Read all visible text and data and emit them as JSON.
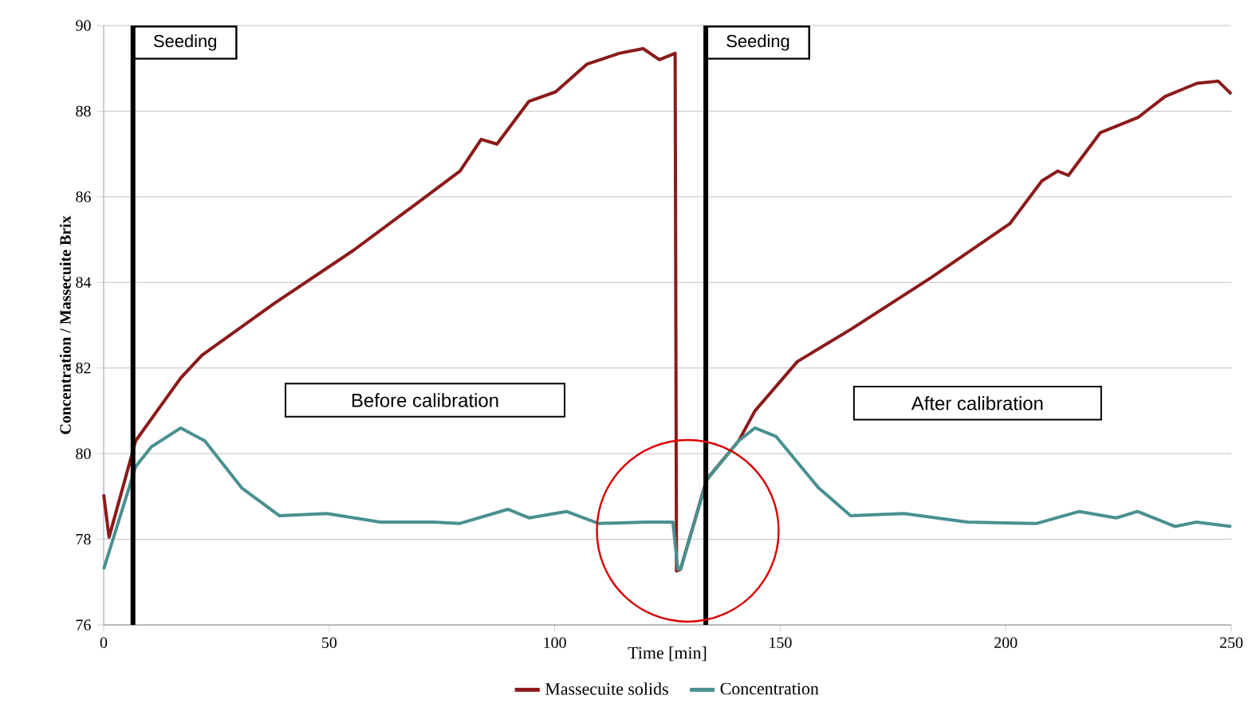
{
  "chart_data": {
    "type": "line",
    "xlabel": "Time [min]",
    "ylabel": "Concentration / Massecuite Brix",
    "xlim": [
      0,
      250
    ],
    "ylim": [
      76,
      90
    ],
    "xticks": [
      0,
      50,
      100,
      150,
      200,
      250
    ],
    "yticks": [
      76,
      78,
      80,
      82,
      84,
      86,
      88,
      90
    ],
    "grid": "y",
    "legend": "bottom",
    "marker": "none",
    "line_style": "solid",
    "series": [
      {
        "name": "Massecuite solids",
        "color": "#8b1a1a",
        "x": [
          0,
          1.2,
          7.1,
          17.1,
          21.8,
          37.7,
          55.4,
          69.5,
          79,
          83.7,
          87.2,
          94.3,
          100.2,
          107.2,
          114.3,
          119.6,
          123.2,
          126.7,
          127,
          127.9,
          133.7,
          140.8,
          144.4,
          153.8,
          165.6,
          183.3,
          200.9,
          208,
          211.5,
          213.9,
          221,
          229.3,
          235.3,
          242.4,
          247.1,
          250
        ],
        "values": [
          79.05,
          78.05,
          80.3,
          81.77,
          82.3,
          83.5,
          84.75,
          85.85,
          86.6,
          87.34,
          87.23,
          88.23,
          88.45,
          89.1,
          89.35,
          89.46,
          89.2,
          89.35,
          77.26,
          77.3,
          79.4,
          80.3,
          81.0,
          82.15,
          82.9,
          84.1,
          85.37,
          86.37,
          86.6,
          86.5,
          87.5,
          87.85,
          88.34,
          88.65,
          88.7,
          88.4
        ]
      },
      {
        "name": "Concentration",
        "color": "#4a9090",
        "x": [
          0,
          7.1,
          10.6,
          17.1,
          22.4,
          30.6,
          39,
          49.5,
          61.3,
          73.1,
          79,
          89.6,
          94.3,
          102.6,
          109.7,
          120.3,
          126.2,
          127.3,
          127.9,
          133.8,
          140.8,
          144.4,
          149.1,
          158.5,
          165.6,
          177.4,
          191.5,
          206.9,
          216.3,
          224.5,
          229.2,
          237.5,
          242.2,
          250
        ],
        "values": [
          77.3,
          79.7,
          80.16,
          80.6,
          80.3,
          79.2,
          78.55,
          78.6,
          78.4,
          78.4,
          78.37,
          78.7,
          78.5,
          78.65,
          78.37,
          78.4,
          78.4,
          77.3,
          77.3,
          79.4,
          80.3,
          80.6,
          80.4,
          79.2,
          78.55,
          78.6,
          78.4,
          78.37,
          78.65,
          78.5,
          78.65,
          78.3,
          78.4,
          78.3
        ]
      }
    ],
    "ref_lines": [
      {
        "axis": "x",
        "value": 6.5,
        "label": "Seeding",
        "color": "#000000"
      },
      {
        "axis": "x",
        "value": 133.5,
        "label": "Seeding",
        "color": "#000000"
      }
    ],
    "annotations": [
      "Before calibration",
      "After calibration"
    ]
  }
}
